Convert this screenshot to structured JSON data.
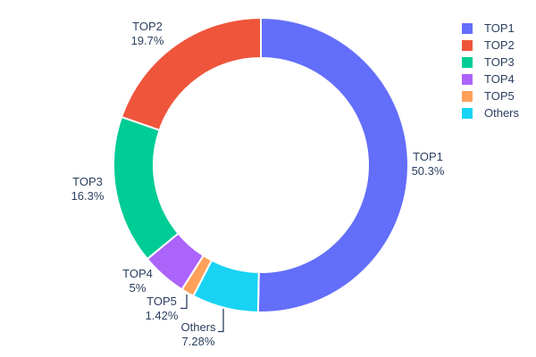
{
  "chart_data": {
    "type": "pie",
    "subtype": "donut",
    "title": "",
    "labels": [
      "TOP1",
      "TOP2",
      "TOP3",
      "TOP4",
      "TOP5",
      "Others"
    ],
    "values": [
      50.3,
      19.7,
      16.3,
      5,
      1.42,
      7.28
    ],
    "percent_labels": [
      "50.3%",
      "19.7%",
      "16.3%",
      "5%",
      "1.42%",
      "7.28%"
    ],
    "colors": [
      "#636EFA",
      "#EF553B",
      "#00CC96",
      "#AB63FA",
      "#FFA15A",
      "#19D3F3"
    ],
    "hole_ratio": 0.73,
    "slice_border_color": "#FFFFFF",
    "label_text_color": "#2A3F5F",
    "leader_line_color": "#2A3F5F",
    "background": "#FFFFFF",
    "start_angle": "top",
    "first_slice_direction": "clockwise",
    "legend": {
      "position": "top-right",
      "entries": [
        "TOP1",
        "TOP2",
        "TOP3",
        "TOP4",
        "TOP5",
        "Others"
      ]
    }
  }
}
